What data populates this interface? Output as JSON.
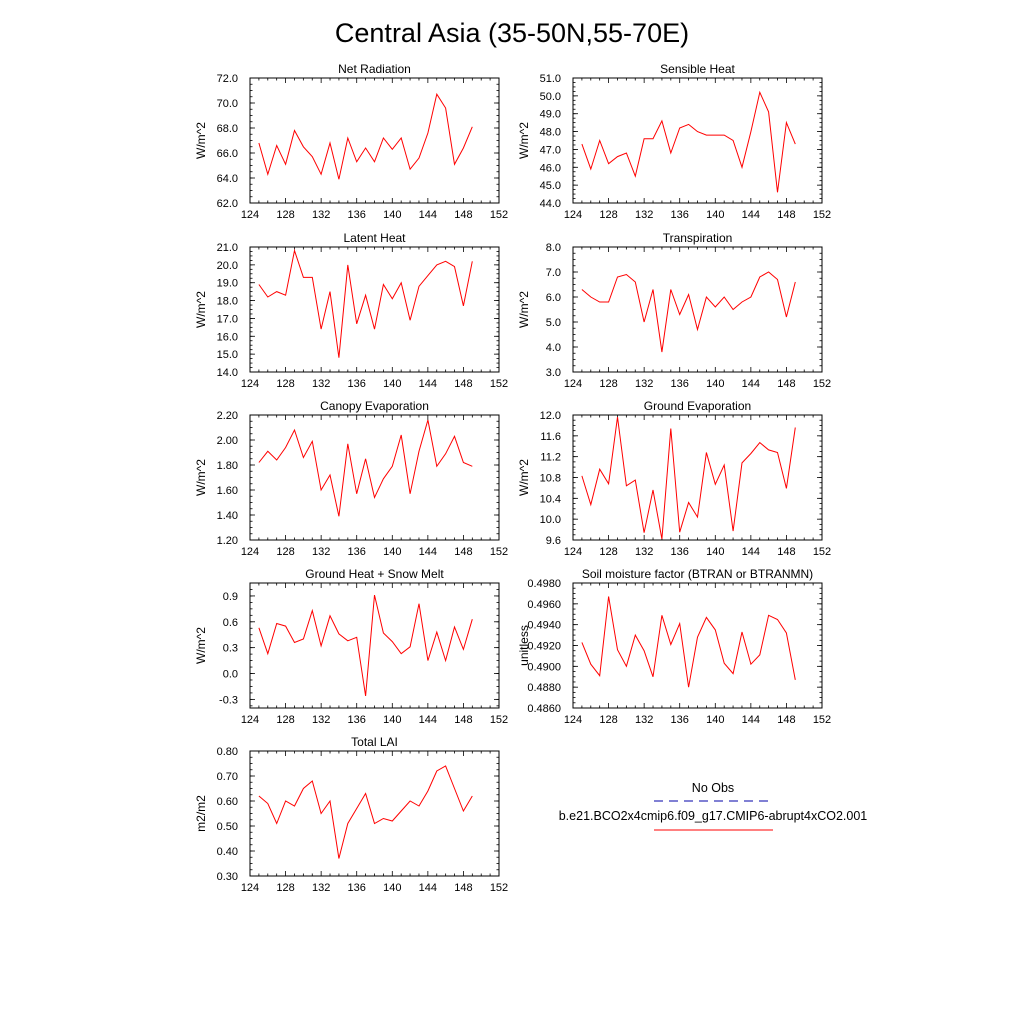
{
  "figure": {
    "title": "Central Asia (35-50N,55-70E)"
  },
  "chart_data": [
    {
      "type": "line",
      "title": "Net Radiation",
      "ylabel": "W/m^2",
      "xlim": [
        124,
        152
      ],
      "ylim": [
        62,
        72
      ],
      "xticks": [
        "124",
        "128",
        "132",
        "136",
        "140",
        "144",
        "148",
        "152"
      ],
      "yticks": [
        "62.0",
        "64.0",
        "66.0",
        "68.0",
        "70.0",
        "72.0"
      ],
      "series": [
        {
          "color": "#ff0000",
          "x": [
            125,
            126,
            127,
            128,
            129,
            130,
            131,
            132,
            133,
            134,
            135,
            136,
            137,
            138,
            139,
            140,
            141,
            142,
            143,
            144,
            145,
            146,
            147,
            148,
            149
          ],
          "y": [
            66.8,
            64.3,
            66.6,
            65.1,
            67.8,
            66.5,
            65.7,
            64.3,
            66.8,
            63.9,
            67.2,
            65.3,
            66.4,
            65.3,
            67.2,
            66.3,
            67.2,
            64.7,
            65.6,
            67.6,
            70.7,
            69.6,
            65.1,
            66.4,
            68.1
          ]
        }
      ]
    },
    {
      "type": "line",
      "title": "Sensible Heat",
      "ylabel": "W/m^2",
      "xlim": [
        124,
        152
      ],
      "ylim": [
        44,
        51
      ],
      "xticks": [
        "124",
        "128",
        "132",
        "136",
        "140",
        "144",
        "148",
        "152"
      ],
      "yticks": [
        "44.0",
        "45.0",
        "46.0",
        "47.0",
        "48.0",
        "49.0",
        "50.0",
        "51.0"
      ],
      "series": [
        {
          "color": "#ff0000",
          "x": [
            125,
            126,
            127,
            128,
            129,
            130,
            131,
            132,
            133,
            134,
            135,
            136,
            137,
            138,
            139,
            140,
            141,
            142,
            143,
            144,
            145,
            146,
            147,
            148,
            149
          ],
          "y": [
            47.3,
            45.9,
            47.5,
            46.2,
            46.6,
            46.8,
            45.5,
            47.6,
            47.6,
            48.6,
            46.8,
            48.2,
            48.4,
            48.0,
            47.8,
            47.8,
            47.8,
            47.5,
            46.0,
            48.0,
            50.2,
            49.1,
            44.6,
            48.5,
            47.3
          ]
        }
      ]
    },
    {
      "type": "line",
      "title": "Latent Heat",
      "ylabel": "W/m^2",
      "xlim": [
        124,
        152
      ],
      "ylim": [
        14,
        21
      ],
      "xticks": [
        "124",
        "128",
        "132",
        "136",
        "140",
        "144",
        "148",
        "152"
      ],
      "yticks": [
        "14.0",
        "15.0",
        "16.0",
        "17.0",
        "18.0",
        "19.0",
        "20.0",
        "21.0"
      ],
      "series": [
        {
          "color": "#ff0000",
          "x": [
            125,
            126,
            127,
            128,
            129,
            130,
            131,
            132,
            133,
            134,
            135,
            136,
            137,
            138,
            139,
            140,
            141,
            142,
            143,
            144,
            145,
            146,
            147,
            148,
            149
          ],
          "y": [
            18.9,
            18.2,
            18.5,
            18.3,
            20.8,
            19.3,
            19.3,
            16.4,
            18.5,
            14.8,
            20.0,
            16.7,
            18.3,
            16.4,
            18.9,
            18.1,
            19.0,
            16.9,
            18.8,
            19.4,
            20.0,
            20.2,
            19.9,
            17.7,
            20.2
          ]
        }
      ]
    },
    {
      "type": "line",
      "title": "Transpiration",
      "ylabel": "W/m^2",
      "xlim": [
        124,
        152
      ],
      "ylim": [
        3,
        8
      ],
      "xticks": [
        "124",
        "128",
        "132",
        "136",
        "140",
        "144",
        "148",
        "152"
      ],
      "yticks": [
        "3.0",
        "4.0",
        "5.0",
        "6.0",
        "7.0",
        "8.0"
      ],
      "series": [
        {
          "color": "#ff0000",
          "x": [
            125,
            126,
            127,
            128,
            129,
            130,
            131,
            132,
            133,
            134,
            135,
            136,
            137,
            138,
            139,
            140,
            141,
            142,
            143,
            144,
            145,
            146,
            147,
            148,
            149
          ],
          "y": [
            6.3,
            6.0,
            5.8,
            5.8,
            6.8,
            6.9,
            6.6,
            5.0,
            6.3,
            3.8,
            6.3,
            5.3,
            6.1,
            4.7,
            6.0,
            5.6,
            6.0,
            5.5,
            5.8,
            6.0,
            6.8,
            7.0,
            6.7,
            5.2,
            6.6
          ]
        }
      ]
    },
    {
      "type": "line",
      "title": "Canopy Evaporation",
      "ylabel": "W/m^2",
      "xlim": [
        124,
        152
      ],
      "ylim": [
        1.2,
        2.2
      ],
      "xticks": [
        "124",
        "128",
        "132",
        "136",
        "140",
        "144",
        "148",
        "152"
      ],
      "yticks": [
        "1.20",
        "1.40",
        "1.60",
        "1.80",
        "2.00",
        "2.20"
      ],
      "series": [
        {
          "color": "#ff0000",
          "x": [
            125,
            126,
            127,
            128,
            129,
            130,
            131,
            132,
            133,
            134,
            135,
            136,
            137,
            138,
            139,
            140,
            141,
            142,
            143,
            144,
            145,
            146,
            147,
            148,
            149
          ],
          "y": [
            1.82,
            1.91,
            1.84,
            1.94,
            2.08,
            1.86,
            1.99,
            1.6,
            1.72,
            1.39,
            1.97,
            1.57,
            1.85,
            1.54,
            1.69,
            1.79,
            2.04,
            1.57,
            1.91,
            2.16,
            1.79,
            1.89,
            2.03,
            1.82,
            1.79
          ]
        }
      ]
    },
    {
      "type": "line",
      "title": "Ground Evaporation",
      "ylabel": "W/m^2",
      "xlim": [
        124,
        152
      ],
      "ylim": [
        9.6,
        12.0
      ],
      "xticks": [
        "124",
        "128",
        "132",
        "136",
        "140",
        "144",
        "148",
        "152"
      ],
      "yticks": [
        "9.6",
        "10.0",
        "10.4",
        "10.8",
        "11.2",
        "11.6",
        "12.0"
      ],
      "series": [
        {
          "color": "#ff0000",
          "x": [
            125,
            126,
            127,
            128,
            129,
            130,
            131,
            132,
            133,
            134,
            135,
            136,
            137,
            138,
            139,
            140,
            141,
            142,
            143,
            144,
            145,
            146,
            147,
            148,
            149
          ],
          "y": [
            10.83,
            10.28,
            10.96,
            10.68,
            11.96,
            10.64,
            10.75,
            9.74,
            10.56,
            9.62,
            11.74,
            9.75,
            10.32,
            10.04,
            11.28,
            10.67,
            11.04,
            9.77,
            11.08,
            11.26,
            11.47,
            11.33,
            11.28,
            10.59,
            11.76
          ]
        }
      ]
    },
    {
      "type": "line",
      "title": "Ground Heat + Snow Melt",
      "ylabel": "W/m^2",
      "xlim": [
        124,
        152
      ],
      "ylim": [
        -0.4,
        1.05
      ],
      "xticks": [
        "124",
        "128",
        "132",
        "136",
        "140",
        "144",
        "148",
        "152"
      ],
      "yticks": [
        "-0.3",
        "0.0",
        "0.3",
        "0.6",
        "0.9"
      ],
      "ytick_values": [
        -0.3,
        0.0,
        0.3,
        0.6,
        0.9
      ],
      "series": [
        {
          "color": "#ff0000",
          "x": [
            125,
            126,
            127,
            128,
            129,
            130,
            131,
            132,
            133,
            134,
            135,
            136,
            137,
            138,
            139,
            140,
            141,
            142,
            143,
            144,
            145,
            146,
            147,
            148,
            149
          ],
          "y": [
            0.53,
            0.23,
            0.58,
            0.55,
            0.36,
            0.4,
            0.73,
            0.32,
            0.67,
            0.46,
            0.38,
            0.42,
            -0.26,
            0.91,
            0.47,
            0.37,
            0.23,
            0.31,
            0.81,
            0.15,
            0.48,
            0.15,
            0.54,
            0.28,
            0.63
          ]
        }
      ]
    },
    {
      "type": "line",
      "title": "Soil moisture factor (BTRAN or BTRANMN)",
      "ylabel": "unitless",
      "xlim": [
        124,
        152
      ],
      "ylim": [
        0.486,
        0.498
      ],
      "xticks": [
        "124",
        "128",
        "132",
        "136",
        "140",
        "144",
        "148",
        "152"
      ],
      "yticks": [
        "0.4860",
        "0.4880",
        "0.4900",
        "0.4920",
        "0.4940",
        "0.4960",
        "0.4980"
      ],
      "series": [
        {
          "color": "#ff0000",
          "x": [
            125,
            126,
            127,
            128,
            129,
            130,
            131,
            132,
            133,
            134,
            135,
            136,
            137,
            138,
            139,
            140,
            141,
            142,
            143,
            144,
            145,
            146,
            147,
            148,
            149
          ],
          "y": [
            0.4923,
            0.4902,
            0.4891,
            0.4967,
            0.4916,
            0.49,
            0.493,
            0.4915,
            0.489,
            0.4949,
            0.4921,
            0.4941,
            0.488,
            0.4928,
            0.4947,
            0.4935,
            0.4903,
            0.4893,
            0.4933,
            0.4902,
            0.4911,
            0.4949,
            0.4945,
            0.4932,
            0.4887
          ]
        }
      ]
    },
    {
      "type": "line",
      "title": "Total LAI",
      "ylabel": "m2/m2",
      "xlim": [
        124,
        152
      ],
      "ylim": [
        0.3,
        0.8
      ],
      "xticks": [
        "124",
        "128",
        "132",
        "136",
        "140",
        "144",
        "148",
        "152"
      ],
      "yticks": [
        "0.30",
        "0.40",
        "0.50",
        "0.60",
        "0.70",
        "0.80"
      ],
      "series": [
        {
          "color": "#ff0000",
          "x": [
            125,
            126,
            127,
            128,
            129,
            130,
            131,
            132,
            133,
            134,
            135,
            136,
            137,
            138,
            139,
            140,
            141,
            142,
            143,
            144,
            145,
            146,
            147,
            148,
            149
          ],
          "y": [
            0.62,
            0.59,
            0.51,
            0.6,
            0.58,
            0.65,
            0.68,
            0.55,
            0.6,
            0.37,
            0.51,
            0.57,
            0.63,
            0.51,
            0.53,
            0.52,
            0.56,
            0.6,
            0.58,
            0.64,
            0.72,
            0.74,
            0.65,
            0.56,
            0.62
          ]
        }
      ]
    }
  ],
  "legend": {
    "entries": [
      {
        "label": "No Obs",
        "color": "#0000aa",
        "style": "dashed"
      },
      {
        "label": "b.e21.BCO2x4cmip6.f09_g17.CMIP6-abrupt4xCO2.001",
        "color": "#ff0000",
        "style": "solid"
      }
    ]
  }
}
